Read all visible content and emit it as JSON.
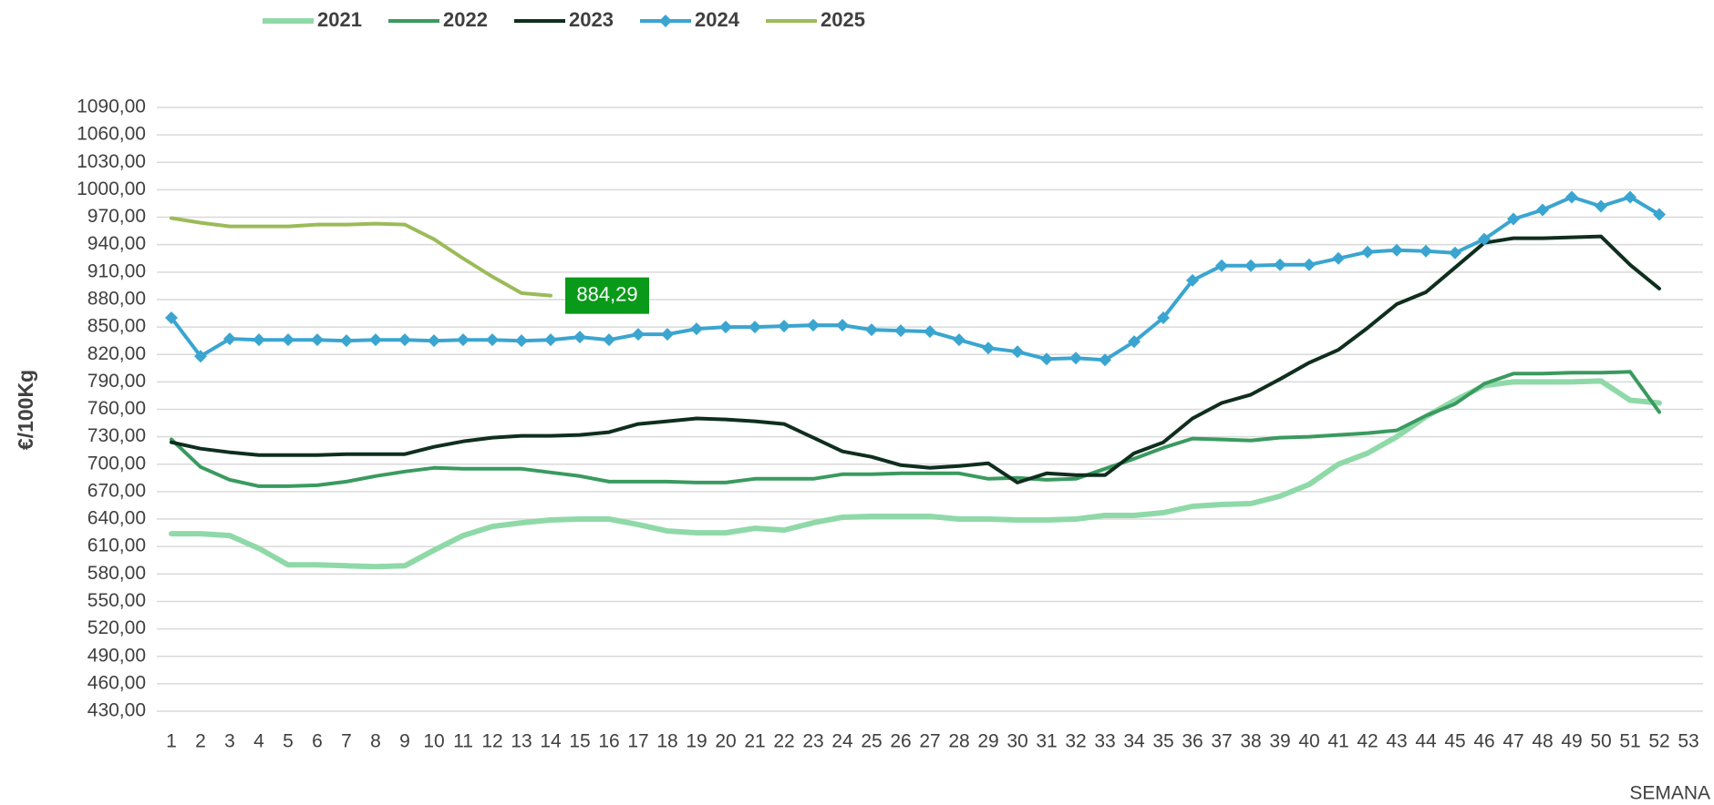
{
  "chart_data": {
    "type": "line",
    "y_label": "€/100Kg",
    "x_label": "SEMANA",
    "categories": [
      "1",
      "2",
      "3",
      "4",
      "5",
      "6",
      "7",
      "8",
      "9",
      "10",
      "11",
      "12",
      "13",
      "14",
      "15",
      "16",
      "17",
      "18",
      "19",
      "20",
      "21",
      "22",
      "23",
      "24",
      "25",
      "26",
      "27",
      "28",
      "29",
      "30",
      "31",
      "32",
      "33",
      "34",
      "35",
      "36",
      "37",
      "38",
      "39",
      "40",
      "41",
      "42",
      "43",
      "44",
      "45",
      "46",
      "47",
      "48",
      "49",
      "50",
      "51",
      "52",
      "53"
    ],
    "ylim": [
      430,
      1090
    ],
    "yticks": [
      {
        "value": 430,
        "label": "430,00"
      },
      {
        "value": 460,
        "label": "460,00"
      },
      {
        "value": 490,
        "label": "490,00"
      },
      {
        "value": 520,
        "label": "520,00"
      },
      {
        "value": 550,
        "label": "550,00"
      },
      {
        "value": 580,
        "label": "580,00"
      },
      {
        "value": 610,
        "label": "610,00"
      },
      {
        "value": 640,
        "label": "640,00"
      },
      {
        "value": 670,
        "label": "670,00"
      },
      {
        "value": 700,
        "label": "700,00"
      },
      {
        "value": 730,
        "label": "730,00"
      },
      {
        "value": 760,
        "label": "760,00"
      },
      {
        "value": 790,
        "label": "790,00"
      },
      {
        "value": 820,
        "label": "820,00"
      },
      {
        "value": 850,
        "label": "850,00"
      },
      {
        "value": 880,
        "label": "880,00"
      },
      {
        "value": 910,
        "label": "910,00"
      },
      {
        "value": 940,
        "label": "940,00"
      },
      {
        "value": 970,
        "label": "970,00"
      },
      {
        "value": 1000,
        "label": "1000,00"
      },
      {
        "value": 1030,
        "label": "1030,00"
      },
      {
        "value": 1060,
        "label": "1060,00"
      },
      {
        "value": 1090,
        "label": "1090,00"
      }
    ],
    "grid": true,
    "legend": "top",
    "series": [
      {
        "name": "2021",
        "color": "#8fd9a8",
        "width": 6,
        "values": [
          624,
          624,
          622,
          608,
          590,
          590,
          589,
          588,
          589,
          606,
          622,
          632,
          636,
          639,
          640,
          640,
          634,
          627,
          625,
          625,
          630,
          628,
          636,
          642,
          643,
          643,
          643,
          640,
          640,
          639,
          639,
          640,
          644,
          644,
          647,
          654,
          656,
          657,
          665,
          678,
          700,
          712,
          730,
          752,
          770,
          786,
          790,
          790,
          790,
          791,
          770,
          767,
          null
        ]
      },
      {
        "name": "2022",
        "color": "#3a9a5f",
        "width": 4,
        "values": [
          727,
          697,
          683,
          676,
          676,
          677,
          681,
          687,
          692,
          696,
          695,
          695,
          695,
          691,
          687,
          681,
          681,
          681,
          680,
          680,
          684,
          684,
          684,
          689,
          689,
          690,
          690,
          690,
          684,
          685,
          683,
          684,
          695,
          706,
          718,
          728,
          727,
          726,
          729,
          730,
          732,
          734,
          737,
          753,
          766,
          788,
          799,
          799,
          800,
          800,
          801,
          757,
          null
        ]
      },
      {
        "name": "2023",
        "color": "#0f2e1e",
        "width": 4,
        "values": [
          724,
          717,
          713,
          710,
          710,
          710,
          711,
          711,
          711,
          719,
          725,
          729,
          731,
          731,
          732,
          735,
          744,
          747,
          750,
          749,
          747,
          744,
          729,
          714,
          708,
          699,
          696,
          698,
          701,
          680,
          690,
          688,
          688,
          712,
          724,
          750,
          767,
          776,
          793,
          811,
          825,
          849,
          875,
          888,
          915,
          942,
          947,
          947,
          948,
          949,
          918,
          892,
          null
        ]
      },
      {
        "name": "2024",
        "color": "#3aa5d0",
        "width": 4,
        "marker": "diamond",
        "values": [
          860,
          818,
          837,
          836,
          836,
          836,
          835,
          836,
          836,
          835,
          836,
          836,
          835,
          836,
          839,
          836,
          842,
          842,
          848,
          850,
          850,
          851,
          852,
          852,
          847,
          846,
          845,
          836,
          827,
          823,
          815,
          816,
          814,
          834,
          860,
          901,
          917,
          917,
          918,
          918,
          925,
          932,
          934,
          933,
          931,
          946,
          968,
          978,
          992,
          982,
          992,
          973,
          null
        ]
      },
      {
        "name": "2025",
        "color": "#9bbb59",
        "width": 4,
        "values": [
          969,
          964,
          960,
          960,
          960,
          962,
          962,
          963,
          962,
          946,
          925,
          905,
          887,
          884.29,
          null,
          null,
          null,
          null,
          null,
          null,
          null,
          null,
          null,
          null,
          null,
          null,
          null,
          null,
          null,
          null,
          null,
          null,
          null,
          null,
          null,
          null,
          null,
          null,
          null,
          null,
          null,
          null,
          null,
          null,
          null,
          null,
          null,
          null,
          null,
          null,
          null,
          null,
          null
        ],
        "value_labels": [
          null,
          null,
          null,
          null,
          null,
          null,
          null,
          null,
          null,
          null,
          null,
          null,
          null,
          "884,29",
          null,
          null,
          null,
          null,
          null,
          null,
          null,
          null,
          null,
          null,
          null,
          null,
          null,
          null,
          null,
          null,
          null,
          null,
          null,
          null,
          null,
          null,
          null,
          null,
          null,
          null,
          null,
          null,
          null,
          null,
          null,
          null,
          null,
          null,
          null,
          null,
          null,
          null,
          null
        ],
        "label_color": "#0a9a1a"
      }
    ]
  }
}
